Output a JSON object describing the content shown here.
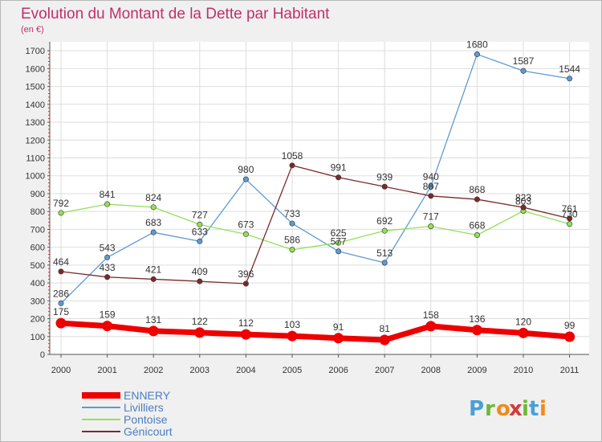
{
  "chart_data": {
    "type": "line",
    "title": "Evolution du Montant de la Dette par Habitant",
    "subtitle": "(en €)",
    "xlabel": "",
    "ylabel": "",
    "categories": [
      "2000",
      "2001",
      "2002",
      "2003",
      "2004",
      "2005",
      "2006",
      "2007",
      "2008",
      "2009",
      "2010",
      "2011"
    ],
    "ylim": [
      0,
      1750
    ],
    "yticks": [
      0,
      100,
      200,
      300,
      400,
      500,
      600,
      700,
      800,
      900,
      1000,
      1100,
      1200,
      1300,
      1400,
      1500,
      1600,
      1700
    ],
    "grid": true,
    "legend_position": "bottom-left",
    "series": [
      {
        "name": "ENNERY",
        "color": "#ee0000",
        "values": [
          175,
          159,
          131,
          122,
          112,
          103,
          91,
          81,
          158,
          136,
          120,
          99
        ]
      },
      {
        "name": "Livilliers",
        "color": "#5d9ad4",
        "values": [
          286,
          543,
          683,
          633,
          980,
          733,
          577,
          513,
          940,
          1680,
          1587,
          1544
        ]
      },
      {
        "name": "Pontoise",
        "color": "#93e05a",
        "values": [
          792,
          841,
          824,
          727,
          673,
          586,
          625,
          692,
          717,
          668,
          803,
          730
        ]
      },
      {
        "name": "Génicourt",
        "color": "#7a2a2a",
        "values": [
          464,
          433,
          421,
          409,
          396,
          1058,
          991,
          939,
          887,
          868,
          823,
          761
        ]
      }
    ]
  },
  "title_color": "#c0306a",
  "logo": {
    "text": "Proxiti",
    "letter_colors": [
      "#4aa0d6",
      "#6bb837",
      "#f08a1c",
      "#d43a3a",
      "#6bb837",
      "#4aa0d6",
      "#f08a1c"
    ]
  }
}
